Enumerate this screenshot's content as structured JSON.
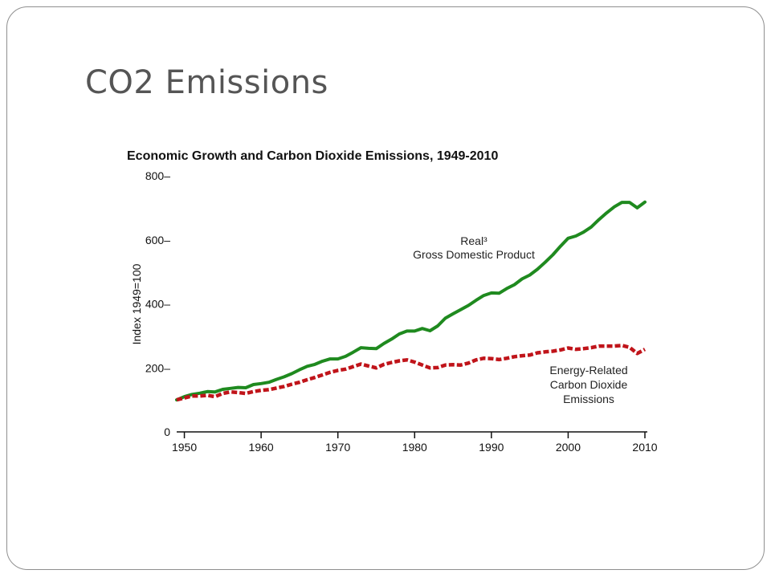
{
  "slide": {
    "title": "CO2 Emissions"
  },
  "chart_data": {
    "type": "line",
    "title": "Economic Growth and Carbon Dioxide Emissions, 1949-2010",
    "ylabel": "Index 1949=100",
    "xlabel": "",
    "xlim": [
      1949,
      2010
    ],
    "ylim": [
      0,
      800
    ],
    "x_ticks": [
      "1950",
      "1960",
      "1970",
      "1980",
      "1990",
      "2000",
      "2010"
    ],
    "y_ticks": [
      "0",
      "200–",
      "400–",
      "600–",
      "800–"
    ],
    "grid": false,
    "x": [
      1949,
      1950,
      1951,
      1952,
      1953,
      1954,
      1955,
      1956,
      1957,
      1958,
      1959,
      1960,
      1961,
      1962,
      1963,
      1964,
      1965,
      1966,
      1967,
      1968,
      1969,
      1970,
      1971,
      1972,
      1973,
      1974,
      1975,
      1976,
      1977,
      1978,
      1979,
      1980,
      1981,
      1982,
      1983,
      1984,
      1985,
      1986,
      1987,
      1988,
      1989,
      1990,
      1991,
      1992,
      1993,
      1994,
      1995,
      1996,
      1997,
      1998,
      1999,
      2000,
      2001,
      2002,
      2003,
      2004,
      2005,
      2006,
      2007,
      2008,
      2009,
      2010
    ],
    "series": [
      {
        "name": "Real³ Gross Domestic Product",
        "color": "#1f8a1f",
        "style": "solid",
        "values": [
          100,
          110,
          117,
          121,
          126,
          125,
          133,
          136,
          139,
          138,
          148,
          151,
          155,
          164,
          172,
          182,
          194,
          205,
          211,
          221,
          228,
          228,
          236,
          249,
          263,
          261,
          260,
          276,
          290,
          306,
          315,
          315,
          323,
          316,
          331,
          355,
          369,
          382,
          395,
          411,
          426,
          434,
          433,
          448,
          460,
          478,
          490,
          508,
          530,
          553,
          580,
          605,
          612,
          624,
          640,
          663,
          684,
          703,
          717,
          717,
          700,
          718
        ]
      },
      {
        "name": "Energy-Related Carbon Dioxide Emissions",
        "color": "#c0141a",
        "style": "dashed",
        "values": [
          100,
          106,
          112,
          112,
          114,
          110,
          120,
          125,
          123,
          120,
          126,
          130,
          132,
          137,
          142,
          149,
          155,
          163,
          170,
          178,
          186,
          192,
          196,
          204,
          212,
          206,
          200,
          211,
          217,
          222,
          225,
          218,
          209,
          200,
          201,
          209,
          210,
          209,
          215,
          225,
          230,
          229,
          226,
          230,
          235,
          238,
          240,
          247,
          250,
          252,
          256,
          262,
          258,
          260,
          263,
          268,
          268,
          268,
          270,
          264,
          245,
          258
        ]
      }
    ],
    "annotations": [
      {
        "text": [
          "Real³",
          "Gross Domestic Product"
        ]
      },
      {
        "text": [
          "Energy-Related",
          "Carbon Dioxide",
          "Emissions"
        ]
      }
    ],
    "legend": "none"
  }
}
